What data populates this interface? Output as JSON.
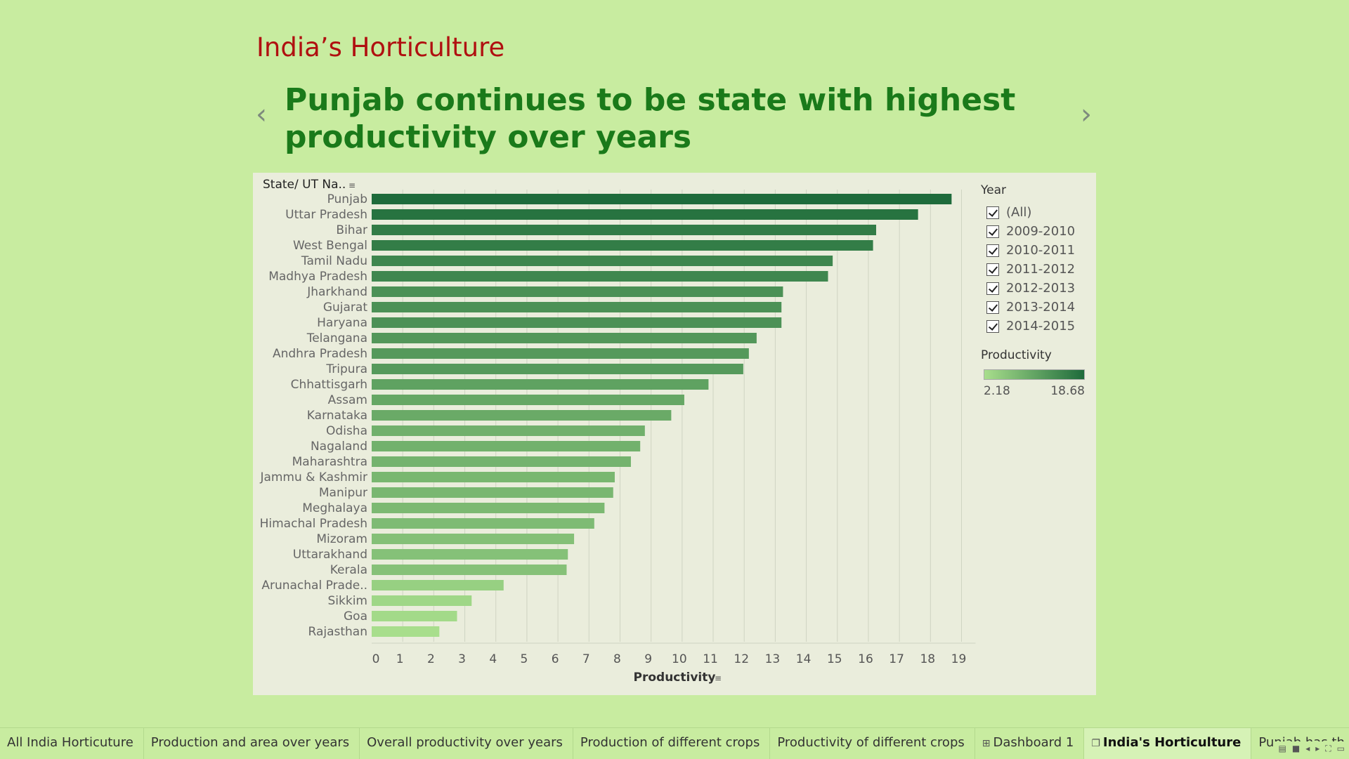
{
  "story": {
    "title": "India’s Horticulture",
    "caption": "Punjab continues to be state with highest productivity over years",
    "prev_icon": "chevron-left-icon",
    "next_icon": "chevron-right-icon"
  },
  "legend": {
    "year_title": "Year",
    "year_items": [
      "(All)",
      "2009-2010",
      "2010-2011",
      "2011-2012",
      "2012-2013",
      "2013-2014",
      "2014-2015"
    ],
    "productivity_title": "Productivity",
    "min_label": "2.18",
    "max_label": "18.68",
    "color_low": "#a8de8c",
    "color_high": "#1e6b3b"
  },
  "chart_data": {
    "type": "bar",
    "orientation": "horizontal",
    "y_header": "State/ UT Na..",
    "xlabel": "Productivity",
    "xlim": [
      0,
      19
    ],
    "x_ticks": [
      0,
      1,
      2,
      3,
      4,
      5,
      6,
      7,
      8,
      9,
      10,
      11,
      12,
      13,
      14,
      15,
      16,
      17,
      18,
      19
    ],
    "grid": true,
    "categories": [
      "Punjab",
      "Uttar Pradesh",
      "Bihar",
      "West Bengal",
      "Tamil Nadu",
      "Madhya Pradesh",
      "Jharkhand",
      "Gujarat",
      "Haryana",
      "Telangana",
      "Andhra Pradesh",
      "Tripura",
      "Chhattisgarh",
      "Assam",
      "Karnataka",
      "Odisha",
      "Nagaland",
      "Maharashtra",
      "Jammu & Kashmir",
      "Manipur",
      "Meghalaya",
      "Himachal Pradesh",
      "Mizoram",
      "Uttarakhand",
      "Kerala",
      "Arunachal Prade..",
      "Sikkim",
      "Goa",
      "Rajasthan"
    ],
    "values": [
      18.68,
      17.6,
      16.25,
      16.15,
      14.85,
      14.7,
      13.25,
      13.2,
      13.2,
      12.4,
      12.15,
      11.97,
      10.85,
      10.07,
      9.65,
      8.8,
      8.65,
      8.35,
      7.83,
      7.78,
      7.5,
      7.17,
      6.52,
      6.32,
      6.28,
      4.25,
      3.22,
      2.75,
      2.18
    ]
  },
  "tabs": [
    {
      "label": "All India Horticuture",
      "icon": "",
      "active": false
    },
    {
      "label": "Production and area over years",
      "icon": "",
      "active": false
    },
    {
      "label": "Overall productivity over years",
      "icon": "",
      "active": false
    },
    {
      "label": "Production of different crops",
      "icon": "",
      "active": false
    },
    {
      "label": "Productivity of different crops",
      "icon": "",
      "active": false
    },
    {
      "label": "Dashboard 1",
      "icon": "dashboard-grid-icon",
      "active": false
    },
    {
      "label": "India's Horticulture",
      "icon": "story-book-icon",
      "active": true
    },
    {
      "label": "Punjab has th",
      "icon": "",
      "active": false
    }
  ]
}
